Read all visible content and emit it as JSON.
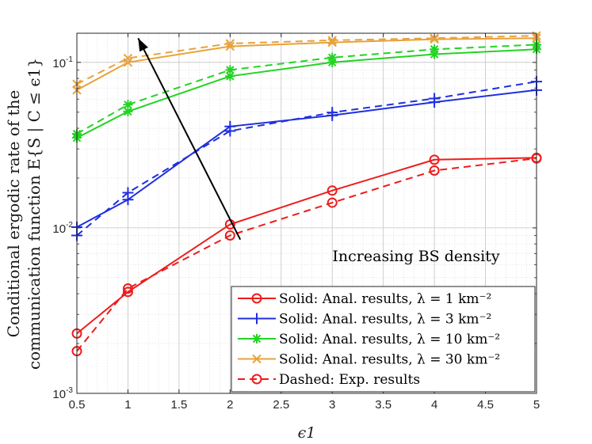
{
  "chart_data": {
    "type": "line",
    "y_scale": "log",
    "xlabel": "ϵ1",
    "ylabel_line1": "Conditional ergodic rate of the",
    "ylabel_line2": "communication function E{S | C ≤ ϵ1}",
    "xlim": [
      0.5,
      5
    ],
    "ylim": [
      0.001,
      0.15
    ],
    "x_ticks": [
      0.5,
      1,
      1.5,
      2,
      2.5,
      3,
      3.5,
      4,
      4.5,
      5
    ],
    "x_tick_labels": [
      "0.5",
      "1",
      "1.5",
      "2",
      "2.5",
      "3",
      "3.5",
      "4",
      "4.5",
      "5"
    ],
    "y_ticks": [
      {
        "value": 0.001,
        "base": "10",
        "exp": "-3"
      },
      {
        "value": 0.01,
        "base": "10",
        "exp": "-2"
      },
      {
        "value": 0.1,
        "base": "10",
        "exp": "-1"
      }
    ],
    "grid": true,
    "x": [
      0.5,
      1,
      2,
      3,
      4,
      5
    ],
    "series": [
      {
        "name": "red-solid",
        "color": "#ee1c1c",
        "dash": false,
        "marker": "circle",
        "values": [
          0.0023,
          0.0041,
          0.0105,
          0.0168,
          0.0258,
          0.0265
        ]
      },
      {
        "name": "red-dashed",
        "color": "#ee1c1c",
        "dash": true,
        "marker": "circle",
        "values": [
          0.0018,
          0.0043,
          0.009,
          0.0142,
          0.0222,
          0.0263
        ]
      },
      {
        "name": "blue-solid",
        "color": "#1f2fe0",
        "dash": false,
        "marker": "plus",
        "values": [
          0.0101,
          0.0148,
          0.041,
          0.0478,
          0.0575,
          0.068
        ]
      },
      {
        "name": "blue-dashed",
        "color": "#1f2fe0",
        "dash": true,
        "marker": "plus",
        "values": [
          0.009,
          0.0163,
          0.0385,
          0.0498,
          0.0605,
          0.0765
        ]
      },
      {
        "name": "green-solid",
        "color": "#22d422",
        "dash": false,
        "marker": "asterisk",
        "values": [
          0.035,
          0.0505,
          0.0825,
          0.1,
          0.112,
          0.12
        ]
      },
      {
        "name": "green-dashed",
        "color": "#22d422",
        "dash": true,
        "marker": "asterisk",
        "values": [
          0.037,
          0.0555,
          0.09,
          0.107,
          0.12,
          0.128
        ]
      },
      {
        "name": "orange-solid",
        "color": "#e8a23a",
        "dash": false,
        "marker": "x",
        "values": [
          0.068,
          0.1,
          0.125,
          0.132,
          0.138,
          0.14
        ]
      },
      {
        "name": "orange-dashed",
        "color": "#e8a23a",
        "dash": true,
        "marker": "x",
        "values": [
          0.074,
          0.106,
          0.13,
          0.136,
          0.14,
          0.145
        ]
      }
    ],
    "annotation": {
      "text": "Increasing BS density",
      "arrow_from": [
        2.1,
        0.0085
      ],
      "arrow_to": [
        1.1,
        0.14
      ]
    },
    "legend": {
      "placement": "bottom-right",
      "entries": [
        {
          "color": "#ee1c1c",
          "dash": false,
          "marker": "circle",
          "label": "Solid: Anal. results, λ = 1 km⁻²"
        },
        {
          "color": "#1f2fe0",
          "dash": false,
          "marker": "plus",
          "label": "Solid: Anal. results, λ = 3 km⁻²"
        },
        {
          "color": "#22d422",
          "dash": false,
          "marker": "asterisk",
          "label": "Solid: Anal. results, λ = 10 km⁻²"
        },
        {
          "color": "#e8a23a",
          "dash": false,
          "marker": "x",
          "label": "Solid: Anal. results, λ = 30 km⁻²"
        },
        {
          "color": "#ee1c1c",
          "dash": true,
          "marker": "circle",
          "label": "Dashed: Exp. results"
        }
      ]
    }
  }
}
